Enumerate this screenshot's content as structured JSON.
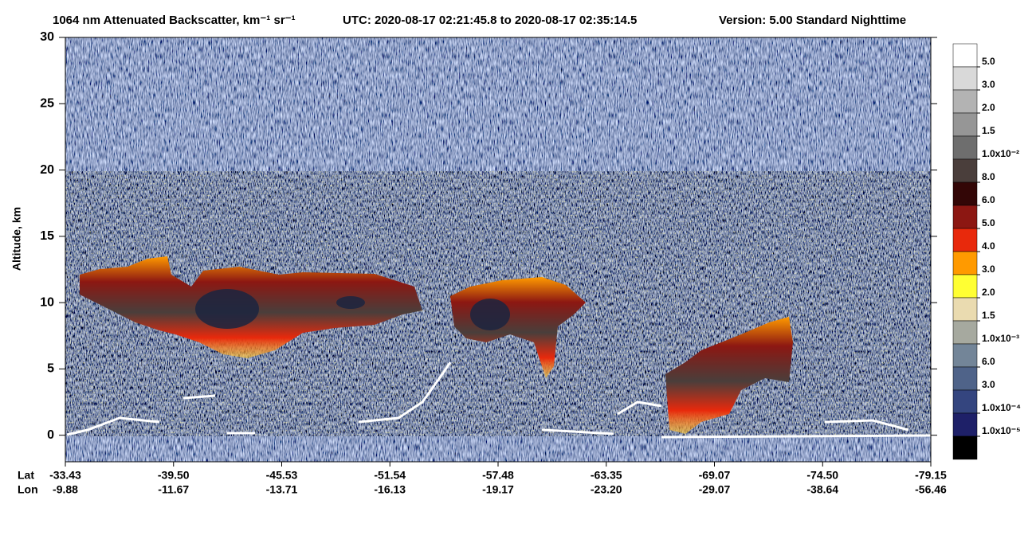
{
  "chart_data": {
    "type": "curtain",
    "title": "1064 nm Attenuated Backscatter, km⁻¹ sr⁻¹",
    "time_range": "UTC:  2020-08-17 02:21:45.8  to  2020-08-17 02:35:14.5",
    "version": "Version: 5.00  Standard  Nighttime",
    "y_label": "Altitude, km",
    "ylim": [
      -2,
      30
    ],
    "yticks": [
      0,
      5,
      10,
      15,
      20,
      25,
      30
    ],
    "x_rows": [
      {
        "name": "Lat",
        "labels": [
          "-33.43",
          "-39.50",
          "-45.53",
          "-51.54",
          "-57.48",
          "-63.35",
          "-69.07",
          "-74.50",
          "-79.15"
        ]
      },
      {
        "name": "Lon",
        "labels": [
          "-9.88",
          "-11.67",
          "-13.71",
          "-16.13",
          "-19.17",
          "-23.20",
          "-29.07",
          "-38.64",
          "-56.46"
        ]
      }
    ],
    "colorbar": {
      "colors": [
        "#ffffff",
        "#d9d9d9",
        "#b3b3b3",
        "#969696",
        "#6e6e6e",
        "#4a3e3b",
        "#330606",
        "#8c1712",
        "#e8290c",
        "#ff9a00",
        "#ffff33",
        "#eadbb0",
        "#a6a99f",
        "#738598",
        "#4f6389",
        "#34457f",
        "#1e2068",
        "#000000"
      ],
      "labels": [
        "5.0",
        "3.0",
        "2.0",
        "1.5",
        "1.0x10⁻²",
        "8.0",
        "6.0",
        "5.0",
        "4.0",
        "3.0",
        "2.0",
        "1.5",
        "1.0x10⁻³",
        "6.0",
        "3.0",
        "1.0x10⁻⁴",
        "1.0x10⁻⁵"
      ]
    }
  }
}
